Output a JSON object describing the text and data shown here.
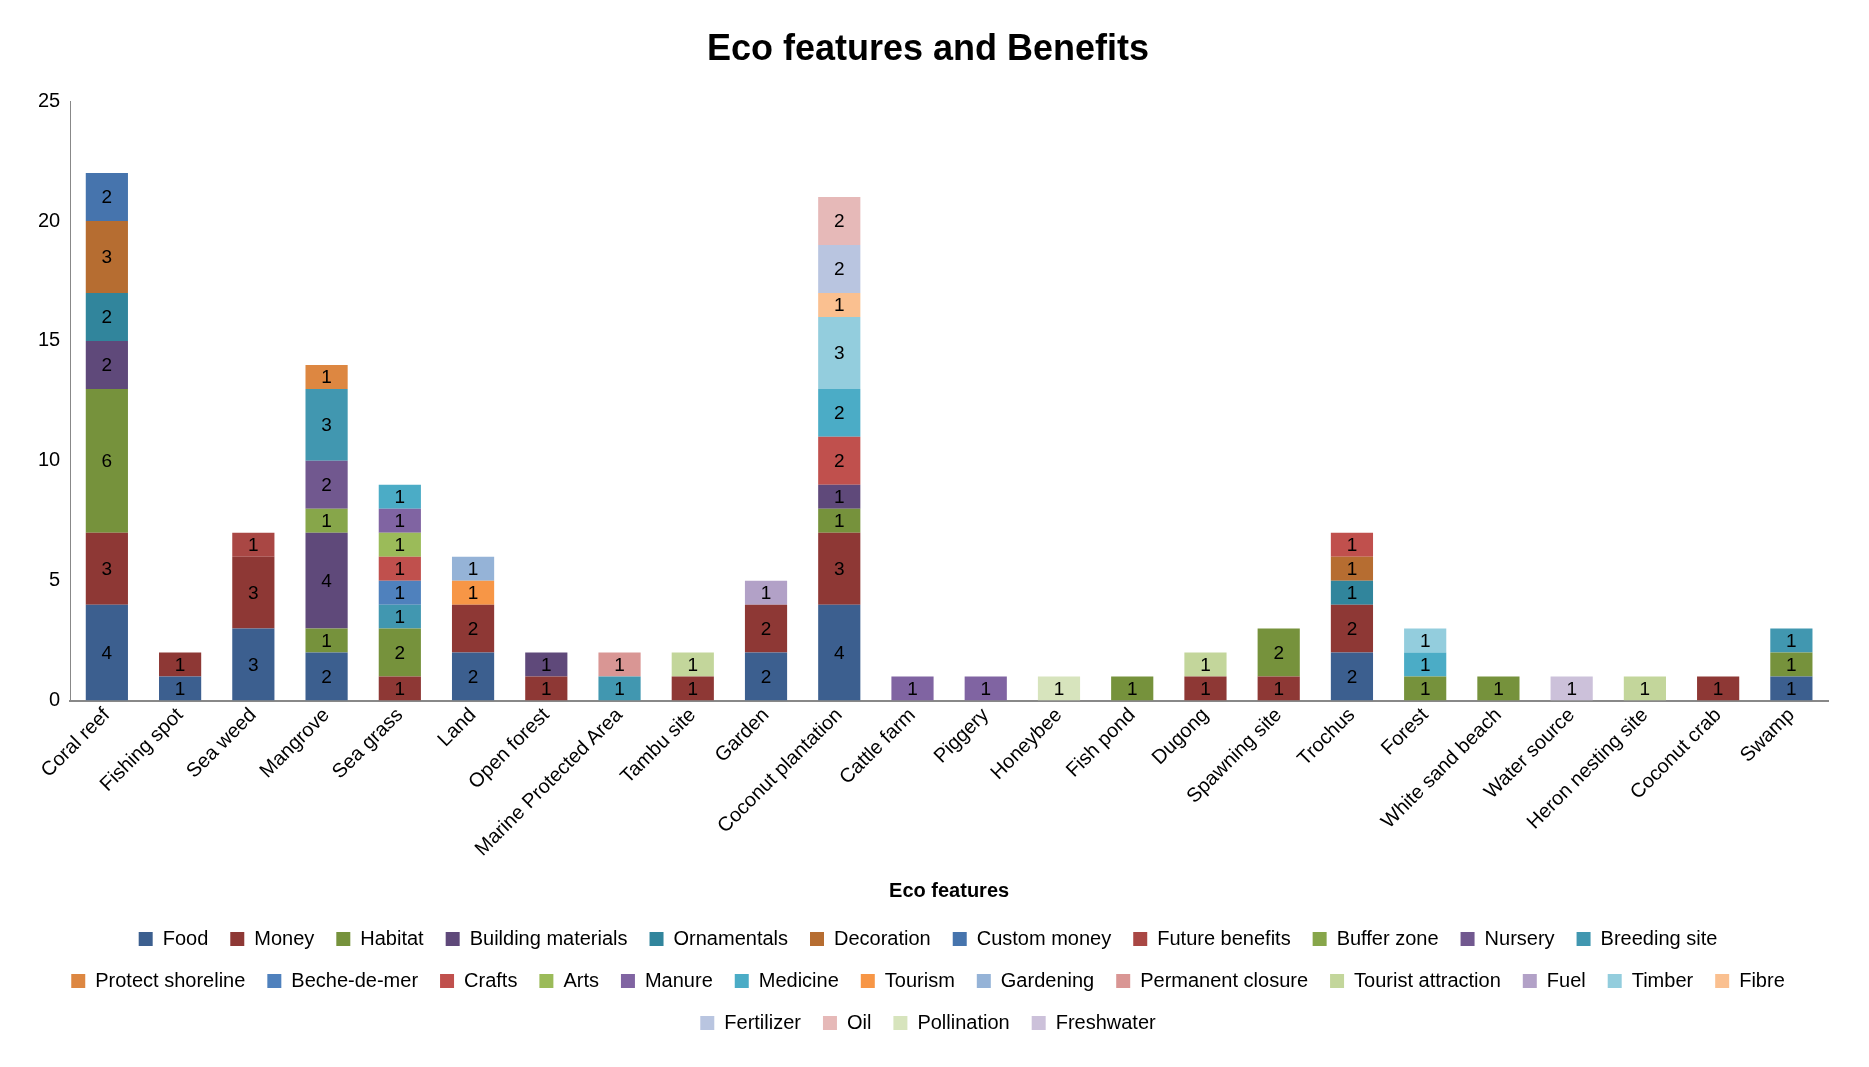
{
  "chart_data": {
    "type": "bar",
    "stacked": true,
    "title": "Eco features and Benefits",
    "xlabel": "Eco features",
    "categories": [
      "Coral reef",
      "Fishing spot",
      "Sea weed",
      "Mangrove",
      "Sea grass",
      "Land",
      "Open forest",
      "Marine Protected Area",
      "Tambu site",
      "Garden",
      "Coconut plantation",
      "Cattle farm",
      "Piggery",
      "Honeybee",
      "Fish pond",
      "Dugong",
      "Spawning site",
      "Trochus",
      "Forest",
      "White sand beach",
      "Water source",
      "Heron nesting site",
      "Coconut crab",
      "Swamp"
    ],
    "ylim": [
      0,
      25
    ],
    "yticks": [
      0,
      5,
      10,
      15,
      20,
      25
    ],
    "grid": false,
    "legend": "bottom",
    "data_labels": true,
    "series": [
      {
        "name": "Food",
        "color": "#3c5f8f",
        "values": [
          4,
          1,
          3,
          2,
          null,
          2,
          null,
          null,
          null,
          2,
          4,
          null,
          null,
          null,
          null,
          null,
          null,
          2,
          null,
          null,
          null,
          null,
          null,
          1
        ]
      },
      {
        "name": "Money",
        "color": "#8e3835",
        "values": [
          3,
          1,
          3,
          null,
          1,
          2,
          1,
          null,
          1,
          2,
          3,
          null,
          null,
          null,
          null,
          1,
          1,
          2,
          null,
          null,
          null,
          null,
          1,
          null
        ]
      },
      {
        "name": "Habitat",
        "color": "#76923c",
        "values": [
          6,
          null,
          null,
          1,
          2,
          null,
          null,
          null,
          null,
          null,
          1,
          null,
          null,
          null,
          1,
          null,
          2,
          null,
          1,
          1,
          null,
          null,
          null,
          1
        ]
      },
      {
        "name": "Building materials",
        "color": "#5f497a",
        "values": [
          2,
          null,
          null,
          4,
          null,
          null,
          1,
          null,
          null,
          null,
          1,
          null,
          null,
          null,
          null,
          null,
          null,
          null,
          null,
          null,
          null,
          null,
          null,
          null
        ]
      },
      {
        "name": "Ornamentals",
        "color": "#31859c",
        "values": [
          2,
          null,
          null,
          null,
          null,
          null,
          null,
          null,
          null,
          null,
          null,
          null,
          null,
          null,
          null,
          null,
          null,
          1,
          null,
          null,
          null,
          null,
          null,
          null
        ]
      },
      {
        "name": "Decoration",
        "color": "#b66d31",
        "values": [
          3,
          null,
          null,
          null,
          null,
          null,
          null,
          null,
          null,
          null,
          null,
          null,
          null,
          null,
          null,
          null,
          null,
          1,
          null,
          null,
          null,
          null,
          null,
          null
        ]
      },
      {
        "name": "Custom money",
        "color": "#4674ad",
        "values": [
          2,
          null,
          null,
          null,
          null,
          null,
          null,
          null,
          null,
          null,
          null,
          null,
          null,
          null,
          null,
          null,
          null,
          null,
          null,
          null,
          null,
          null,
          null,
          null
        ]
      },
      {
        "name": "Future benefits",
        "color": "#a94744",
        "values": [
          null,
          null,
          1,
          null,
          null,
          null,
          null,
          null,
          null,
          null,
          null,
          null,
          null,
          null,
          null,
          null,
          null,
          null,
          null,
          null,
          null,
          null,
          null,
          null
        ]
      },
      {
        "name": "Buffer zone",
        "color": "#87a64a",
        "values": [
          null,
          null,
          null,
          1,
          null,
          null,
          null,
          null,
          null,
          null,
          null,
          null,
          null,
          null,
          null,
          null,
          null,
          null,
          null,
          null,
          null,
          null,
          null,
          null
        ]
      },
      {
        "name": "Nursery",
        "color": "#71588f",
        "values": [
          null,
          null,
          null,
          2,
          null,
          null,
          null,
          null,
          null,
          null,
          null,
          null,
          null,
          null,
          null,
          null,
          null,
          null,
          null,
          null,
          null,
          null,
          null,
          null
        ]
      },
      {
        "name": "Breeding site",
        "color": "#4197b0",
        "values": [
          null,
          null,
          null,
          3,
          1,
          null,
          null,
          1,
          null,
          null,
          null,
          null,
          null,
          null,
          null,
          null,
          null,
          null,
          null,
          null,
          null,
          null,
          null,
          1
        ]
      },
      {
        "name": "Protect shoreline",
        "color": "#dd8741",
        "values": [
          null,
          null,
          null,
          1,
          null,
          null,
          null,
          null,
          null,
          null,
          null,
          null,
          null,
          null,
          null,
          null,
          null,
          null,
          null,
          null,
          null,
          null,
          null,
          null
        ]
      },
      {
        "name": "Beche-de-mer",
        "color": "#4f81bd",
        "values": [
          null,
          null,
          null,
          null,
          1,
          null,
          null,
          null,
          null,
          null,
          null,
          null,
          null,
          null,
          null,
          null,
          null,
          null,
          null,
          null,
          null,
          null,
          null,
          null
        ]
      },
      {
        "name": "Crafts",
        "color": "#c0504d",
        "values": [
          null,
          null,
          null,
          null,
          1,
          null,
          null,
          null,
          null,
          null,
          2,
          null,
          null,
          null,
          null,
          null,
          null,
          1,
          null,
          null,
          null,
          null,
          null,
          null
        ]
      },
      {
        "name": "Arts",
        "color": "#9bbb59",
        "values": [
          null,
          null,
          null,
          null,
          1,
          null,
          null,
          null,
          null,
          null,
          null,
          null,
          null,
          null,
          null,
          null,
          null,
          null,
          null,
          null,
          null,
          null,
          null,
          null
        ]
      },
      {
        "name": "Manure",
        "color": "#8064a2",
        "values": [
          null,
          null,
          null,
          null,
          1,
          null,
          null,
          null,
          null,
          null,
          null,
          1,
          1,
          null,
          null,
          null,
          null,
          null,
          null,
          null,
          null,
          null,
          null,
          null
        ]
      },
      {
        "name": "Medicine",
        "color": "#4bacc6",
        "values": [
          null,
          null,
          null,
          null,
          1,
          null,
          null,
          null,
          null,
          null,
          2,
          null,
          null,
          null,
          null,
          null,
          null,
          null,
          1,
          null,
          null,
          null,
          null,
          null
        ]
      },
      {
        "name": "Tourism",
        "color": "#f79646",
        "values": [
          null,
          null,
          null,
          null,
          null,
          1,
          null,
          null,
          null,
          null,
          null,
          null,
          null,
          null,
          null,
          null,
          null,
          null,
          null,
          null,
          null,
          null,
          null,
          null
        ]
      },
      {
        "name": "Gardening",
        "color": "#95b3d7",
        "values": [
          null,
          null,
          null,
          null,
          null,
          1,
          null,
          null,
          null,
          null,
          null,
          null,
          null,
          null,
          null,
          null,
          null,
          null,
          null,
          null,
          null,
          null,
          null,
          null
        ]
      },
      {
        "name": "Permanent closure",
        "color": "#d99694",
        "values": [
          null,
          null,
          null,
          null,
          null,
          null,
          null,
          1,
          null,
          null,
          null,
          null,
          null,
          null,
          null,
          null,
          null,
          null,
          null,
          null,
          null,
          null,
          null,
          null
        ]
      },
      {
        "name": "Tourist attraction",
        "color": "#c3d69b",
        "values": [
          null,
          null,
          null,
          null,
          null,
          null,
          null,
          null,
          1,
          null,
          null,
          null,
          null,
          null,
          null,
          1,
          null,
          null,
          null,
          null,
          null,
          1,
          null,
          null
        ]
      },
      {
        "name": "Fuel",
        "color": "#b2a1c7",
        "values": [
          null,
          null,
          null,
          null,
          null,
          null,
          null,
          null,
          null,
          1,
          null,
          null,
          null,
          null,
          null,
          null,
          null,
          null,
          null,
          null,
          null,
          null,
          null,
          null
        ]
      },
      {
        "name": "Timber",
        "color": "#93cddd",
        "values": [
          null,
          null,
          null,
          null,
          null,
          null,
          null,
          null,
          null,
          null,
          3,
          null,
          null,
          null,
          null,
          null,
          null,
          null,
          1,
          null,
          null,
          null,
          null,
          null
        ]
      },
      {
        "name": "Fibre",
        "color": "#fac090",
        "values": [
          null,
          null,
          null,
          null,
          null,
          null,
          null,
          null,
          null,
          null,
          1,
          null,
          null,
          null,
          null,
          null,
          null,
          null,
          null,
          null,
          null,
          null,
          null,
          null
        ]
      },
      {
        "name": "Fertilizer",
        "color": "#b9c5e0",
        "values": [
          null,
          null,
          null,
          null,
          null,
          null,
          null,
          null,
          null,
          null,
          2,
          null,
          null,
          null,
          null,
          null,
          null,
          null,
          null,
          null,
          null,
          null,
          null,
          null
        ]
      },
      {
        "name": "Oil",
        "color": "#e6b9b8",
        "values": [
          null,
          null,
          null,
          null,
          null,
          null,
          null,
          null,
          null,
          null,
          2,
          null,
          null,
          null,
          null,
          null,
          null,
          null,
          null,
          null,
          null,
          null,
          null,
          null
        ]
      },
      {
        "name": "Pollination",
        "color": "#d7e4bd",
        "values": [
          null,
          null,
          null,
          null,
          null,
          null,
          null,
          null,
          null,
          null,
          null,
          null,
          null,
          1,
          null,
          null,
          null,
          null,
          null,
          null,
          null,
          null,
          null,
          null
        ]
      },
      {
        "name": "Freshwater",
        "color": "#ccc1da",
        "values": [
          null,
          null,
          null,
          null,
          null,
          null,
          null,
          null,
          null,
          null,
          null,
          null,
          null,
          null,
          null,
          null,
          null,
          null,
          null,
          null,
          1,
          null,
          null,
          null
        ]
      }
    ]
  }
}
